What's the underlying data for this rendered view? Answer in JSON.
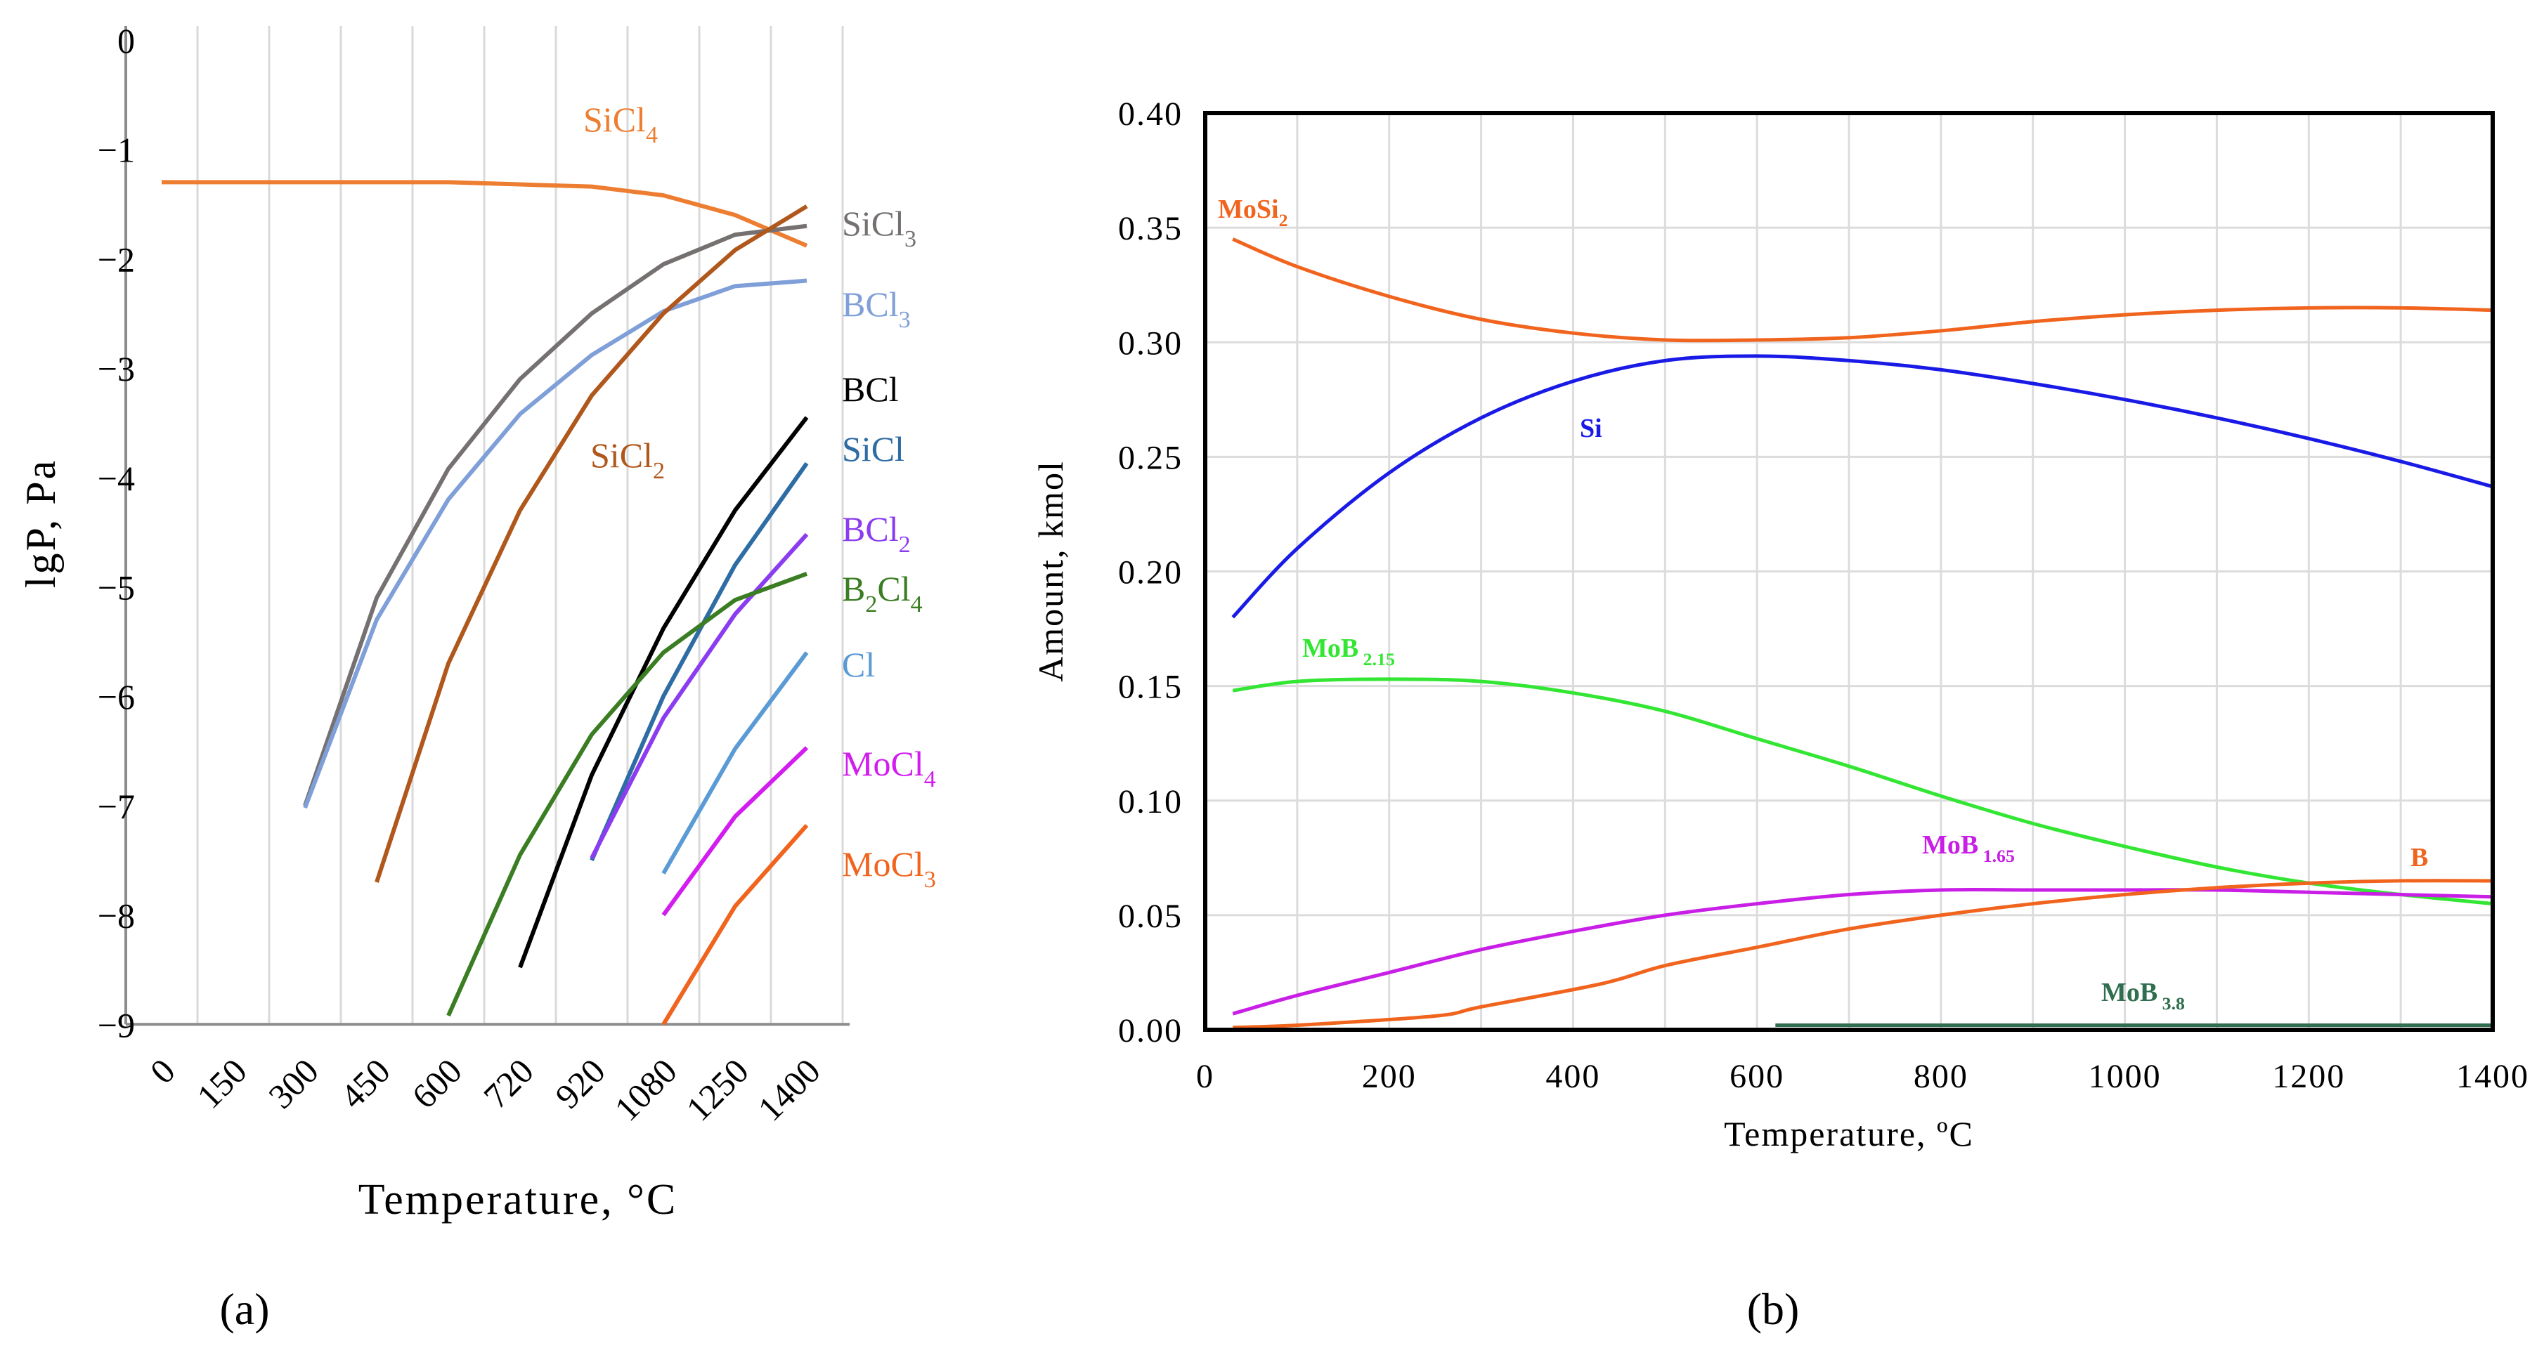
{
  "panel_labels": {
    "a": "(a)",
    "b": "(b)"
  },
  "chart_data": [
    {
      "type": "line",
      "panel": "a",
      "xlabel": "Temperature, °C",
      "ylabel": "lgP, Pa",
      "categories": [
        "0",
        "150",
        "300",
        "450",
        "600",
        "720",
        "920",
        "1080",
        "1250",
        "1400"
      ],
      "ylim": [
        -9,
        0
      ],
      "yticks": [
        "0",
        "−1",
        "−2",
        "−3",
        "−4",
        "−5",
        "−6",
        "−7",
        "−8",
        "−9"
      ],
      "grid": "vertical",
      "series": [
        {
          "name": "SiCl4",
          "label": {
            "main": "SiCl",
            "sub": "4"
          },
          "color": "#ED7D31",
          "values": [
            -1.3,
            -1.3,
            -1.3,
            -1.3,
            -1.3,
            -1.32,
            -1.34,
            -1.42,
            -1.6,
            -1.88
          ]
        },
        {
          "name": "SiCl3",
          "label": {
            "main": "SiCl",
            "sub": "3"
          },
          "color": "#767171",
          "values": [
            null,
            null,
            -7.0,
            -5.1,
            -3.92,
            -3.1,
            -2.5,
            -2.05,
            -1.78,
            -1.7
          ]
        },
        {
          "name": "BCl3",
          "label": {
            "main": "BCl",
            "sub": "3"
          },
          "color": "#7F9FD8",
          "values": [
            null,
            null,
            -7.02,
            -5.3,
            -4.2,
            -3.42,
            -2.88,
            -2.48,
            -2.25,
            -2.2
          ]
        },
        {
          "name": "SiCl2",
          "label": {
            "main": "SiCl",
            "sub": "2"
          },
          "color": "#B0571C",
          "values": [
            null,
            null,
            null,
            -7.7,
            -5.7,
            -4.3,
            -3.25,
            -2.5,
            -1.92,
            -1.52
          ]
        },
        {
          "name": "BCl",
          "label": {
            "main": "BCl",
            "sub": ""
          },
          "color": "#000000",
          "values": [
            null,
            null,
            null,
            null,
            null,
            -8.48,
            -6.72,
            -5.38,
            -4.3,
            -3.45
          ]
        },
        {
          "name": "SiCl",
          "label": {
            "main": "SiCl",
            "sub": ""
          },
          "color": "#2E6CA4",
          "values": [
            null,
            null,
            null,
            null,
            null,
            null,
            -7.5,
            -6.0,
            -4.8,
            -3.87
          ]
        },
        {
          "name": "BCl2",
          "label": {
            "main": "BCl",
            "sub": "2"
          },
          "color": "#8B3CF0",
          "values": [
            null,
            null,
            null,
            null,
            null,
            null,
            -7.48,
            -6.2,
            -5.25,
            -4.52
          ]
        },
        {
          "name": "B2Cl4",
          "label": {
            "main": "B",
            "sub": "2",
            "tail": "Cl",
            "sub2": "4"
          },
          "color": "#3A7D22",
          "values": [
            null,
            null,
            null,
            null,
            -8.92,
            -7.45,
            -6.35,
            -5.6,
            -5.12,
            -4.88
          ]
        },
        {
          "name": "Cl",
          "label": {
            "main": "Cl",
            "sub": ""
          },
          "color": "#5B9BD5",
          "values": [
            null,
            null,
            null,
            null,
            null,
            null,
            null,
            -7.62,
            -6.48,
            -5.6
          ]
        },
        {
          "name": "MoCl4",
          "label": {
            "main": "MoCl",
            "sub": "4"
          },
          "color": "#D21CF0",
          "values": [
            null,
            null,
            null,
            null,
            null,
            null,
            null,
            -8.0,
            -7.1,
            -6.47
          ]
        },
        {
          "name": "MoCl3",
          "label": {
            "main": "MoCl",
            "sub": "3"
          },
          "color": "#F0641E",
          "values": [
            null,
            null,
            null,
            null,
            null,
            null,
            null,
            -9.0,
            -7.92,
            -7.18
          ]
        }
      ]
    },
    {
      "type": "line",
      "panel": "b",
      "xlabel": "Temperature, ºC",
      "ylabel": "Amount, kmol",
      "xlim": [
        0,
        1400
      ],
      "ylim": [
        0,
        0.4
      ],
      "xticks": [
        "0",
        "200",
        "400",
        "600",
        "800",
        "1000",
        "1200",
        "1400"
      ],
      "yticks": [
        "0.00",
        "0.05",
        "0.10",
        "0.15",
        "0.20",
        "0.25",
        "0.30",
        "0.35",
        "0.40"
      ],
      "grid": "both",
      "series": [
        {
          "name": "MoSi2",
          "label": {
            "main": "MoSi",
            "sub": "2"
          },
          "color": "#F0641E",
          "x": [
            30,
            100,
            200,
            300,
            400,
            500,
            600,
            700,
            800,
            900,
            1000,
            1100,
            1200,
            1300,
            1400
          ],
          "y": [
            0.345,
            0.333,
            0.32,
            0.31,
            0.304,
            0.301,
            0.301,
            0.302,
            0.305,
            0.309,
            0.312,
            0.314,
            0.315,
            0.315,
            0.314
          ]
        },
        {
          "name": "Si",
          "label": {
            "main": "Si",
            "sub": ""
          },
          "color": "#1A1AE6",
          "x": [
            30,
            100,
            200,
            300,
            400,
            500,
            600,
            700,
            800,
            900,
            1000,
            1100,
            1200,
            1300,
            1400
          ],
          "y": [
            0.18,
            0.21,
            0.243,
            0.267,
            0.283,
            0.292,
            0.294,
            0.292,
            0.288,
            0.282,
            0.275,
            0.267,
            0.258,
            0.248,
            0.237
          ]
        },
        {
          "name": "MoB2.15",
          "label": {
            "main": "MoB",
            "sub": " 2.15"
          },
          "color": "#33E633",
          "x": [
            30,
            100,
            200,
            300,
            400,
            500,
            600,
            700,
            800,
            900,
            1000,
            1100,
            1200,
            1300,
            1400
          ],
          "y": [
            0.148,
            0.152,
            0.153,
            0.152,
            0.147,
            0.139,
            0.127,
            0.115,
            0.102,
            0.09,
            0.08,
            0.071,
            0.064,
            0.059,
            0.055
          ]
        },
        {
          "name": "MoB1.65",
          "label": {
            "main": "MoB",
            "sub": " 1.65"
          },
          "color": "#C81EE6",
          "x": [
            30,
            100,
            200,
            300,
            400,
            500,
            600,
            700,
            800,
            900,
            1000,
            1100,
            1200,
            1300,
            1400
          ],
          "y": [
            0.007,
            0.015,
            0.025,
            0.035,
            0.043,
            0.05,
            0.055,
            0.059,
            0.061,
            0.061,
            0.061,
            0.061,
            0.06,
            0.059,
            0.058
          ]
        },
        {
          "name": "B",
          "label": {
            "main": "B",
            "sub": ""
          },
          "color": "#F0641E",
          "x": [
            30,
            100,
            250,
            300,
            430,
            500,
            600,
            700,
            800,
            900,
            1000,
            1100,
            1200,
            1300,
            1400
          ],
          "y": [
            0.001,
            0.002,
            0.006,
            0.01,
            0.02,
            0.028,
            0.036,
            0.044,
            0.05,
            0.055,
            0.059,
            0.062,
            0.064,
            0.065,
            0.065
          ]
        },
        {
          "name": "MoB3.8",
          "label": {
            "main": "MoB",
            "sub": " 3.8"
          },
          "color": "#2F6E4E",
          "x": [
            620,
            800,
            1000,
            1200,
            1400
          ],
          "y": [
            0.002,
            0.002,
            0.002,
            0.002,
            0.002
          ]
        }
      ]
    }
  ]
}
